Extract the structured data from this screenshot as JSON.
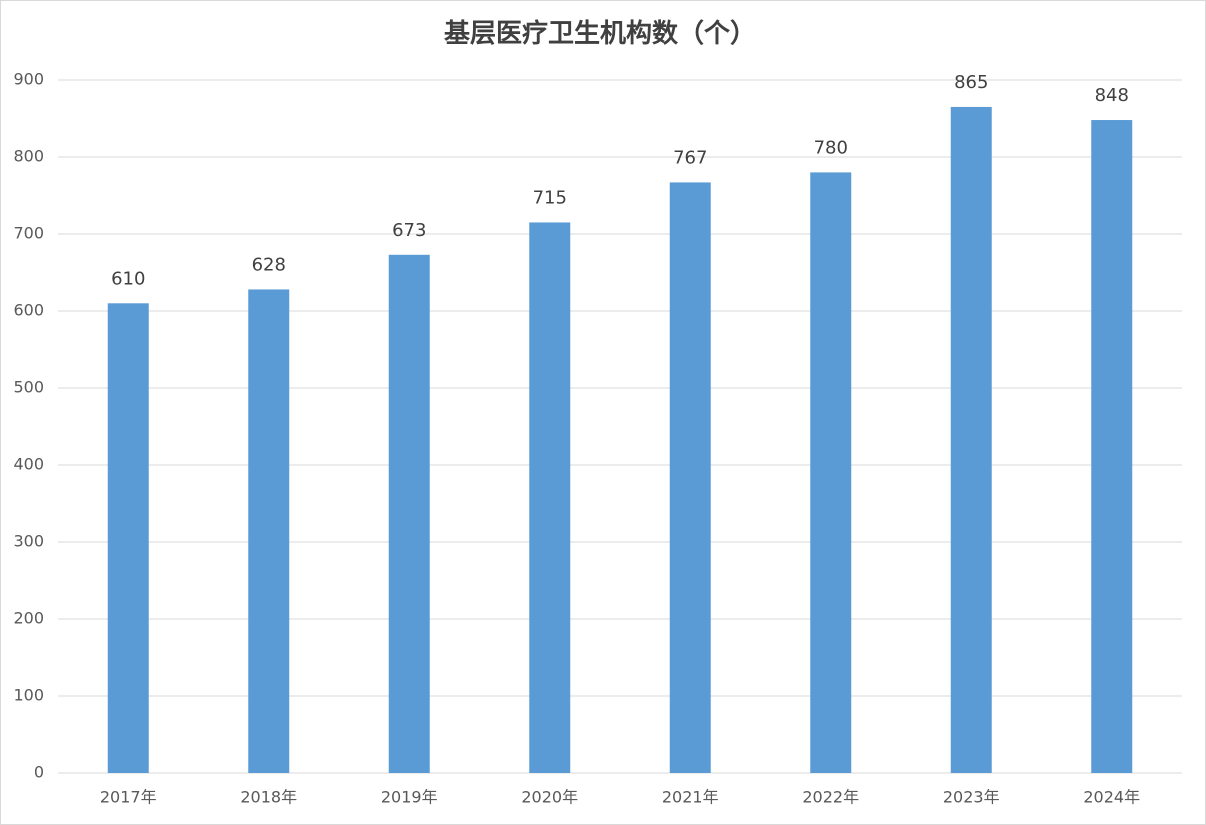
{
  "chart_data": {
    "type": "bar",
    "title": "基层医疗卫生机构数（个）",
    "categories": [
      "2017年",
      "2018年",
      "2019年",
      "2020年",
      "2021年",
      "2022年",
      "2023年",
      "2024年"
    ],
    "values": [
      610,
      628,
      673,
      715,
      767,
      780,
      865,
      848
    ],
    "color": "#5b9bd5",
    "ylim": [
      0,
      900
    ],
    "yticks": [
      0,
      100,
      200,
      300,
      400,
      500,
      600,
      700,
      800,
      900
    ],
    "grid": true
  }
}
